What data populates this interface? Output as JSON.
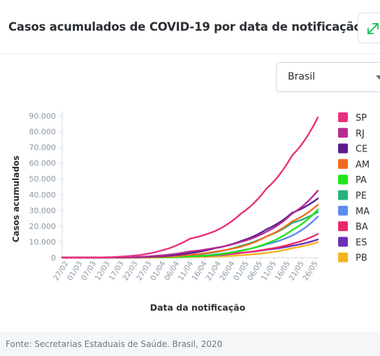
{
  "header": {
    "title": "Casos acumulados de COVID-19 por data de notificação"
  },
  "filter": {
    "selected": "Brasil"
  },
  "footer": {
    "source": "Fonte: Secretarias Estaduais de Saúde. Brasil, 2020"
  },
  "colors": {
    "background": "#f4f6f7",
    "card": "#ffffff",
    "expand_icon": "#22c55e"
  },
  "icons": {
    "expand": "expand-arrows-icon",
    "dropdown": "chevron-down-icon"
  },
  "chart_data": {
    "type": "line",
    "xlabel": "Data da notificação",
    "ylabel": "Casos acumulados",
    "ylim": [
      0,
      90000
    ],
    "yticks": [
      0,
      10000,
      20000,
      30000,
      40000,
      50000,
      60000,
      70000,
      80000,
      90000
    ],
    "ytick_labels": [
      "0",
      "10.000",
      "20.000",
      "30.000",
      "40.000",
      "50.000",
      "60.000",
      "70.000",
      "80.000",
      "90.000"
    ],
    "x": [
      "27/02",
      "06/03",
      "15/03",
      "24/03",
      "02/04",
      "11/04",
      "20/04",
      "29/04",
      "08/05",
      "17/05",
      "26/05"
    ],
    "xtick_labels": [
      "27/02",
      "01/03",
      "07/03",
      "12/03",
      "17/03",
      "22/03",
      "27/03",
      "01/04",
      "06/04",
      "11/04",
      "16/04",
      "21/04",
      "26/04",
      "01/05",
      "06/05",
      "11/05",
      "16/05",
      "21/05",
      "26/05"
    ],
    "legend_position": "right",
    "grid": false,
    "series": [
      {
        "name": "SP",
        "color": "#e8317e",
        "values": [
          0,
          20,
          300,
          1500,
          5000,
          12000,
          17000,
          28000,
          44000,
          65000,
          89000
        ]
      },
      {
        "name": "RJ",
        "color": "#b62b93",
        "values": [
          0,
          5,
          80,
          400,
          1600,
          3900,
          6200,
          10000,
          16500,
          28000,
          42500
        ]
      },
      {
        "name": "CE",
        "color": "#5b1d8c",
        "values": [
          0,
          0,
          30,
          300,
          1000,
          2800,
          6000,
          10500,
          18000,
          28500,
          37500
        ]
      },
      {
        "name": "AM",
        "color": "#f26b1d",
        "values": [
          0,
          0,
          5,
          80,
          500,
          1700,
          3800,
          7000,
          13500,
          23000,
          33500
        ]
      },
      {
        "name": "PA",
        "color": "#22e51b",
        "values": [
          0,
          0,
          0,
          30,
          150,
          600,
          1800,
          4300,
          9000,
          17500,
          30500
        ]
      },
      {
        "name": "PE",
        "color": "#22b27a",
        "values": [
          0,
          0,
          10,
          100,
          500,
          1700,
          3500,
          7500,
          13500,
          22000,
          29000
        ]
      },
      {
        "name": "MA",
        "color": "#5b8cf0",
        "values": [
          0,
          0,
          0,
          30,
          200,
          700,
          2000,
          4500,
          8500,
          14000,
          26000
        ]
      },
      {
        "name": "BA",
        "color": "#ec2a6a",
        "values": [
          0,
          0,
          10,
          80,
          300,
          900,
          1800,
          3000,
          5300,
          8800,
          15000
        ]
      },
      {
        "name": "ES",
        "color": "#6a31b5",
        "values": [
          0,
          0,
          5,
          50,
          250,
          700,
          1500,
          3000,
          5000,
          7500,
          11500
        ]
      },
      {
        "name": "PB",
        "color": "#f6b31e",
        "values": [
          0,
          0,
          0,
          20,
          100,
          300,
          700,
          1500,
          3000,
          6000,
          9800
        ]
      }
    ]
  }
}
